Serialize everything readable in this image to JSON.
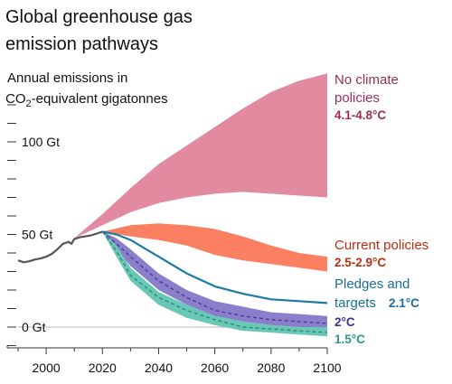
{
  "chart_data": {
    "type": "area",
    "title_line1": "Global greenhouse gas",
    "title_line2": "emission pathways",
    "ylabel_line1": "Annual emissions in",
    "ylabel_co2_prefix": "CO",
    "ylabel_co2_sub": "2",
    "ylabel_rest": "-equivalent gigatonnes",
    "x_ticks": [
      2000,
      2020,
      2040,
      2060,
      2080,
      2100
    ],
    "y_tick_labels": [
      {
        "value": 0,
        "label": "0 Gt"
      },
      {
        "value": 50,
        "label": "50 Gt"
      },
      {
        "value": 100,
        "label": "100 Gt"
      }
    ],
    "y_minor_tick_step": 10,
    "xlim": [
      1990,
      2100
    ],
    "ylim": [
      -10,
      120
    ],
    "historical": {
      "x": [
        1990,
        1992,
        1994,
        1996,
        1998,
        2000,
        2002,
        2004,
        2006,
        2008,
        2009,
        2010,
        2012,
        2014,
        2016,
        2018,
        2020
      ],
      "y": [
        36,
        35,
        35.5,
        36.5,
        37,
        38,
        39.5,
        42,
        45,
        46,
        45,
        47.5,
        48.5,
        49,
        49.5,
        50.5,
        51.5
      ]
    },
    "scenarios": [
      {
        "name": "No climate policies",
        "warming": "4.1-4.8°C",
        "color": "#e28aa0",
        "x": [
          2010,
          2020,
          2030,
          2040,
          2050,
          2060,
          2070,
          2080,
          2090,
          2100
        ],
        "low": [
          48,
          55,
          62,
          67,
          70,
          72,
          73,
          72,
          71,
          70
        ],
        "high": [
          48,
          61,
          75,
          88,
          98,
          108,
          118,
          127,
          133,
          137
        ]
      },
      {
        "name": "Current policies",
        "warming": "2.5-2.9°C",
        "color": "#fb8062",
        "x": [
          2020,
          2030,
          2040,
          2050,
          2060,
          2070,
          2080,
          2090,
          2100
        ],
        "low": [
          51.5,
          49,
          47,
          44,
          39,
          36,
          34,
          32,
          30
        ],
        "high": [
          51.5,
          55,
          56,
          55,
          53,
          49,
          44,
          40,
          38
        ]
      },
      {
        "name": "Pledges and targets",
        "warming": "2.1°C",
        "color": "#1a7ba6",
        "x": [
          2020,
          2025,
          2030,
          2040,
          2050,
          2060,
          2070,
          2080,
          2090,
          2100
        ],
        "y": [
          51.5,
          50,
          47,
          38,
          29,
          22,
          18,
          15,
          14,
          13
        ]
      },
      {
        "name": "",
        "warming": "2°C",
        "color": "#8b7fcc",
        "median_color": "#4a3c98",
        "x": [
          2020,
          2025,
          2030,
          2040,
          2050,
          2060,
          2070,
          2080,
          2090,
          2100
        ],
        "low": [
          51.5,
          42,
          33,
          20,
          12,
          6,
          3,
          1,
          0,
          -1
        ],
        "high": [
          51.5,
          48,
          42,
          29,
          20,
          14,
          11,
          8,
          7,
          6
        ],
        "median": [
          51.5,
          45,
          38,
          25,
          16,
          9,
          6,
          4,
          3,
          2
        ]
      },
      {
        "name": "",
        "warming": "1.5°C",
        "color": "#69c7b6",
        "median_color": "#2e8a74",
        "x": [
          2020,
          2025,
          2030,
          2040,
          2050,
          2060,
          2070,
          2080,
          2090,
          2100
        ],
        "low": [
          51.5,
          38,
          25,
          12,
          5,
          1,
          -2,
          -3,
          -4,
          -5
        ],
        "high": [
          51.5,
          44,
          32,
          19,
          12,
          6,
          3,
          1,
          0,
          0
        ],
        "median": [
          51.5,
          41,
          28,
          16,
          9,
          4,
          0,
          -1,
          -2,
          -3
        ]
      }
    ],
    "label_colors": {
      "no_policy": "#9c2d55",
      "current": "#b8300f",
      "pledges": "#1a6f9a",
      "two": "#3e2f8f",
      "one_five": "#2a9b80"
    }
  }
}
